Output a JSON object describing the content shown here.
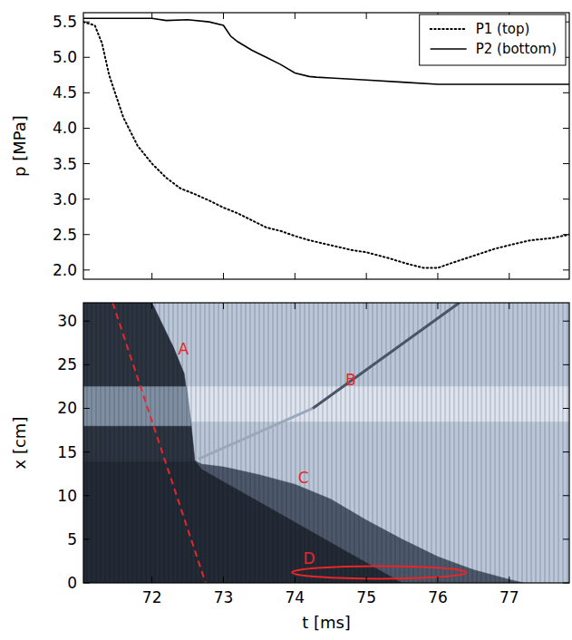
{
  "chart_data": [
    {
      "type": "line",
      "ylabel": "p [MPa]",
      "xlim": [
        71.04,
        77.84
      ],
      "ylim": [
        1.87,
        5.63
      ],
      "xticks": [
        72,
        73,
        74,
        75,
        76,
        77
      ],
      "yticks": [
        {
          "value": 2.0,
          "label": "2.0"
        },
        {
          "value": 2.5,
          "label": "2.5"
        },
        {
          "value": 3.0,
          "label": "3.0"
        },
        {
          "value": 3.5,
          "label": "3.5"
        },
        {
          "value": 4.0,
          "label": "4.0"
        },
        {
          "value": 4.5,
          "label": "4.5"
        },
        {
          "value": 5.0,
          "label": "5.0"
        },
        {
          "value": 5.5,
          "label": "5.5"
        }
      ],
      "tick_labels": "y",
      "legend": "upper right",
      "series": [
        {
          "name": "P1 (top)",
          "color": "#000000",
          "line_style": "dotted",
          "x": [
            71.04,
            71.2,
            71.3,
            71.4,
            71.5,
            71.6,
            71.7,
            71.8,
            72.0,
            72.2,
            72.4,
            72.6,
            72.8,
            73.0,
            73.2,
            73.4,
            73.6,
            73.8,
            74.0,
            74.2,
            74.5,
            74.8,
            75.0,
            75.3,
            75.6,
            75.8,
            76.0,
            76.2,
            76.5,
            76.8,
            77.0,
            77.3,
            77.6,
            77.84
          ],
          "values": [
            5.5,
            5.45,
            5.2,
            4.75,
            4.45,
            4.15,
            3.95,
            3.75,
            3.5,
            3.3,
            3.15,
            3.07,
            2.98,
            2.88,
            2.8,
            2.7,
            2.6,
            2.55,
            2.48,
            2.42,
            2.35,
            2.28,
            2.25,
            2.17,
            2.08,
            2.03,
            2.03,
            2.1,
            2.2,
            2.3,
            2.35,
            2.42,
            2.45,
            2.5
          ]
        },
        {
          "name": "P2 (bottom)",
          "color": "#000000",
          "line_style": "solid",
          "x": [
            71.04,
            72.0,
            72.2,
            72.5,
            72.8,
            73.0,
            73.1,
            73.2,
            73.4,
            73.6,
            73.8,
            74.0,
            74.2,
            74.3,
            74.5,
            75.0,
            75.5,
            76.0,
            77.84
          ],
          "values": [
            5.55,
            5.55,
            5.52,
            5.53,
            5.5,
            5.45,
            5.3,
            5.22,
            5.1,
            5.0,
            4.9,
            4.78,
            4.73,
            4.72,
            4.71,
            4.68,
            4.65,
            4.62,
            4.62
          ]
        }
      ]
    },
    {
      "type": "image",
      "xlabel": "t [ms]",
      "ylabel": "x [cm]",
      "xlim": [
        71.04,
        77.84
      ],
      "ylim": [
        0,
        32.1
      ],
      "xticks": [
        72,
        73,
        74,
        75,
        76,
        77
      ],
      "yticks": [
        0,
        5,
        10,
        15,
        20,
        25,
        30
      ],
      "regions": [
        {
          "color": "#b9c7d8",
          "points": [
            [
              71.04,
              0
            ],
            [
              77.84,
              0
            ],
            [
              77.84,
              32.1
            ],
            [
              71.04,
              32.1
            ]
          ]
        },
        {
          "color": "#dde4ef",
          "points": [
            [
              72.5,
              22.5
            ],
            [
              77.84,
              22.5
            ],
            [
              77.84,
              18.5
            ],
            [
              72.55,
              18.5
            ]
          ]
        },
        {
          "color": "#2b3440",
          "points": [
            [
              71.04,
              32.1
            ],
            [
              72.0,
              32.1
            ],
            [
              72.3,
              27
            ],
            [
              72.45,
              24
            ],
            [
              72.55,
              18
            ],
            [
              72.6,
              14
            ],
            [
              71.04,
              14
            ]
          ]
        },
        {
          "color": "#7f8fa3",
          "points": [
            [
              71.04,
              22.5
            ],
            [
              72.48,
              22.5
            ],
            [
              72.55,
              18
            ],
            [
              71.04,
              18
            ]
          ]
        },
        {
          "color": "#4c586a",
          "points": [
            [
              72.6,
              14
            ],
            [
              72.7,
              13.6
            ],
            [
              73.0,
              13.3
            ],
            [
              73.5,
              12.4
            ],
            [
              74.0,
              11.3
            ],
            [
              74.5,
              9.6
            ],
            [
              75.0,
              7.2
            ],
            [
              75.5,
              5.0
            ],
            [
              76.0,
              3.0
            ],
            [
              76.5,
              1.5
            ],
            [
              77.0,
              0.4
            ],
            [
              77.2,
              0
            ],
            [
              75.5,
              0
            ],
            [
              72.7,
              13
            ]
          ]
        },
        {
          "color": "#222a36",
          "points": [
            [
              71.04,
              14
            ],
            [
              72.6,
              14
            ],
            [
              72.7,
              13
            ],
            [
              75.5,
              0
            ],
            [
              71.04,
              0
            ]
          ]
        }
      ],
      "lines": [
        {
          "color": "#9aa8ba",
          "line_style": "solid",
          "points": [
            [
              72.65,
              14.2
            ],
            [
              74.25,
              20
            ]
          ]
        },
        {
          "color": "#4a5668",
          "line_style": "solid",
          "points": [
            [
              74.25,
              20
            ],
            [
              76.3,
              32.1
            ]
          ]
        },
        {
          "color": "#e8262a",
          "line_style": "dashed",
          "points": [
            [
              71.45,
              32.1
            ],
            [
              72.75,
              0
            ]
          ]
        }
      ],
      "ellipses": [
        {
          "color": "#e8262a",
          "center": [
            75.18,
            1.2
          ],
          "radii": [
            1.22,
            0.72
          ]
        }
      ],
      "annotations": [
        {
          "text": "A",
          "x": 72.44,
          "y": 26.8,
          "color": "#e8262a"
        },
        {
          "text": "B",
          "x": 74.78,
          "y": 23.3,
          "color": "#e8262a"
        },
        {
          "text": "C",
          "x": 74.12,
          "y": 12.0,
          "color": "#e8262a"
        },
        {
          "text": "D",
          "x": 74.2,
          "y": 2.8,
          "color": "#e8262a"
        }
      ]
    }
  ]
}
